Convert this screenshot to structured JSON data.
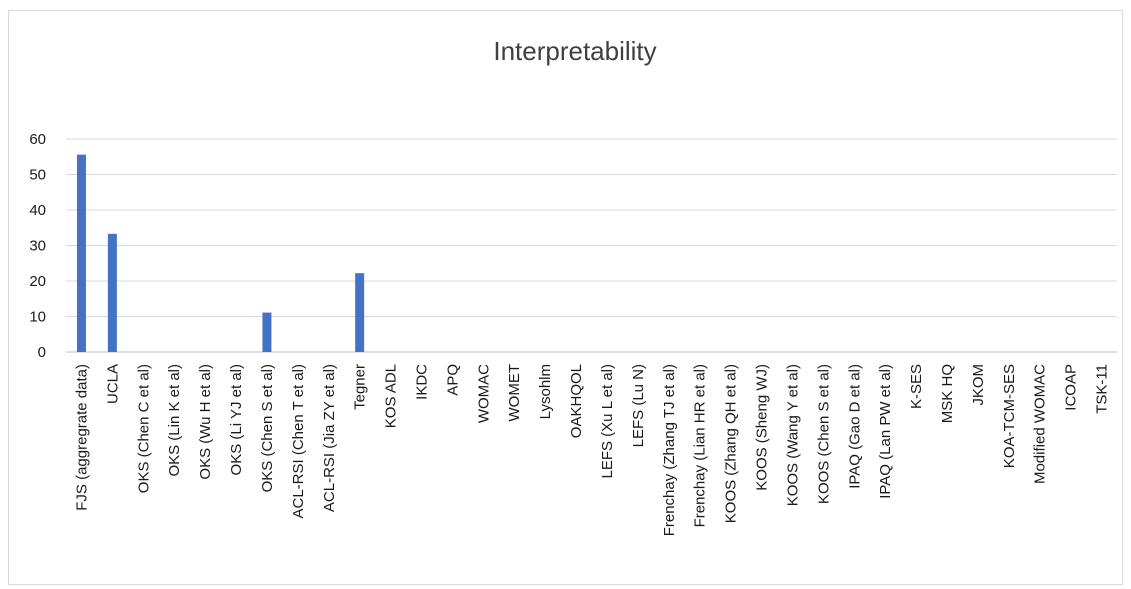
{
  "chart_data": {
    "type": "bar",
    "title": "Interpretability",
    "xlabel": "",
    "ylabel": "",
    "ylim": [
      0,
      60
    ],
    "yticks": [
      0,
      10,
      20,
      30,
      40,
      50,
      60
    ],
    "grid": true,
    "legend": "none",
    "bar_color": "#4472c4",
    "categories": [
      "FJS (aggregrate data)",
      "UCLA",
      "OKS (Chen C et al)",
      "OKS (Lin K et al)",
      "OKS (Wu H et al)",
      "OKS (Li YJ et al)",
      "OKS (Chen S et al)",
      "ACL-RSI (Chen T et al)",
      "ACL-RSI (Jia ZY et al)",
      "Tegner",
      "KOS ADL",
      "IKDC",
      "APQ",
      "WOMAC",
      "WOMET",
      "Lysohlm",
      "OAKHQOL",
      "LEFS (Xu L et al)",
      "LEFS (Lu N)",
      "Frenchay (Zhang TJ et al)",
      "Frenchay (Lian HR et al)",
      "KOOS (Zhang QH et al)",
      "KOOS (Sheng WJ)",
      "KOOS (Wang Y et al)",
      "KOOS (Chen S et al)",
      "IPAQ (Gao D et al)",
      "IPAQ  (Lan PW et al)",
      "K-SES",
      "MSK HQ",
      "JKOM",
      "KOA-TCM-SES",
      "Modified WOMAC",
      "ICOAP",
      "TSK-11"
    ],
    "values": [
      55.6,
      33.3,
      0,
      0,
      0,
      0,
      11.1,
      0,
      0,
      22.2,
      0,
      0,
      0,
      0,
      0,
      0,
      0,
      0,
      0,
      0,
      0,
      0,
      0,
      0,
      0,
      0,
      0,
      0,
      0,
      0,
      0,
      0,
      0,
      0
    ]
  }
}
